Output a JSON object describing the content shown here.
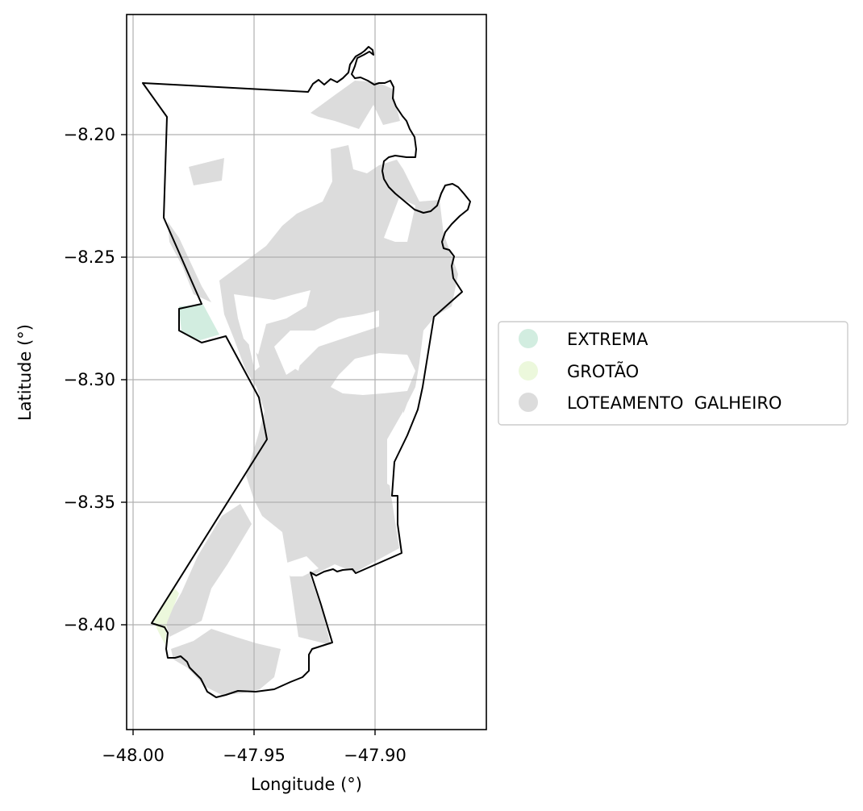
{
  "chart_data": {
    "type": "map",
    "xlabel": "Longitude (°)",
    "ylabel": "Latitude (°)",
    "xlim": [
      -48.003,
      -47.854
    ],
    "ylim": [
      -8.443,
      -8.151
    ],
    "xticks": [
      -48.0,
      -47.95,
      -47.9
    ],
    "xtick_labels": [
      "−48.00",
      "−47.95",
      "−47.90"
    ],
    "yticks": [
      -8.2,
      -8.25,
      -8.3,
      -8.35,
      -8.4
    ],
    "ytick_labels": [
      "−8.20",
      "−8.25",
      "−8.30",
      "−8.35",
      "−8.40"
    ],
    "grid": true,
    "legend_position": "right",
    "legend": [
      {
        "label": "EXTREMA",
        "color": "#d2ede0"
      },
      {
        "label": "GROTÃO",
        "color": "#ecf8dc"
      },
      {
        "label": "LOTEAMENTO  GALHEIRO",
        "color": "#dcdcdc"
      }
    ],
    "boundary_color": "#000000"
  }
}
